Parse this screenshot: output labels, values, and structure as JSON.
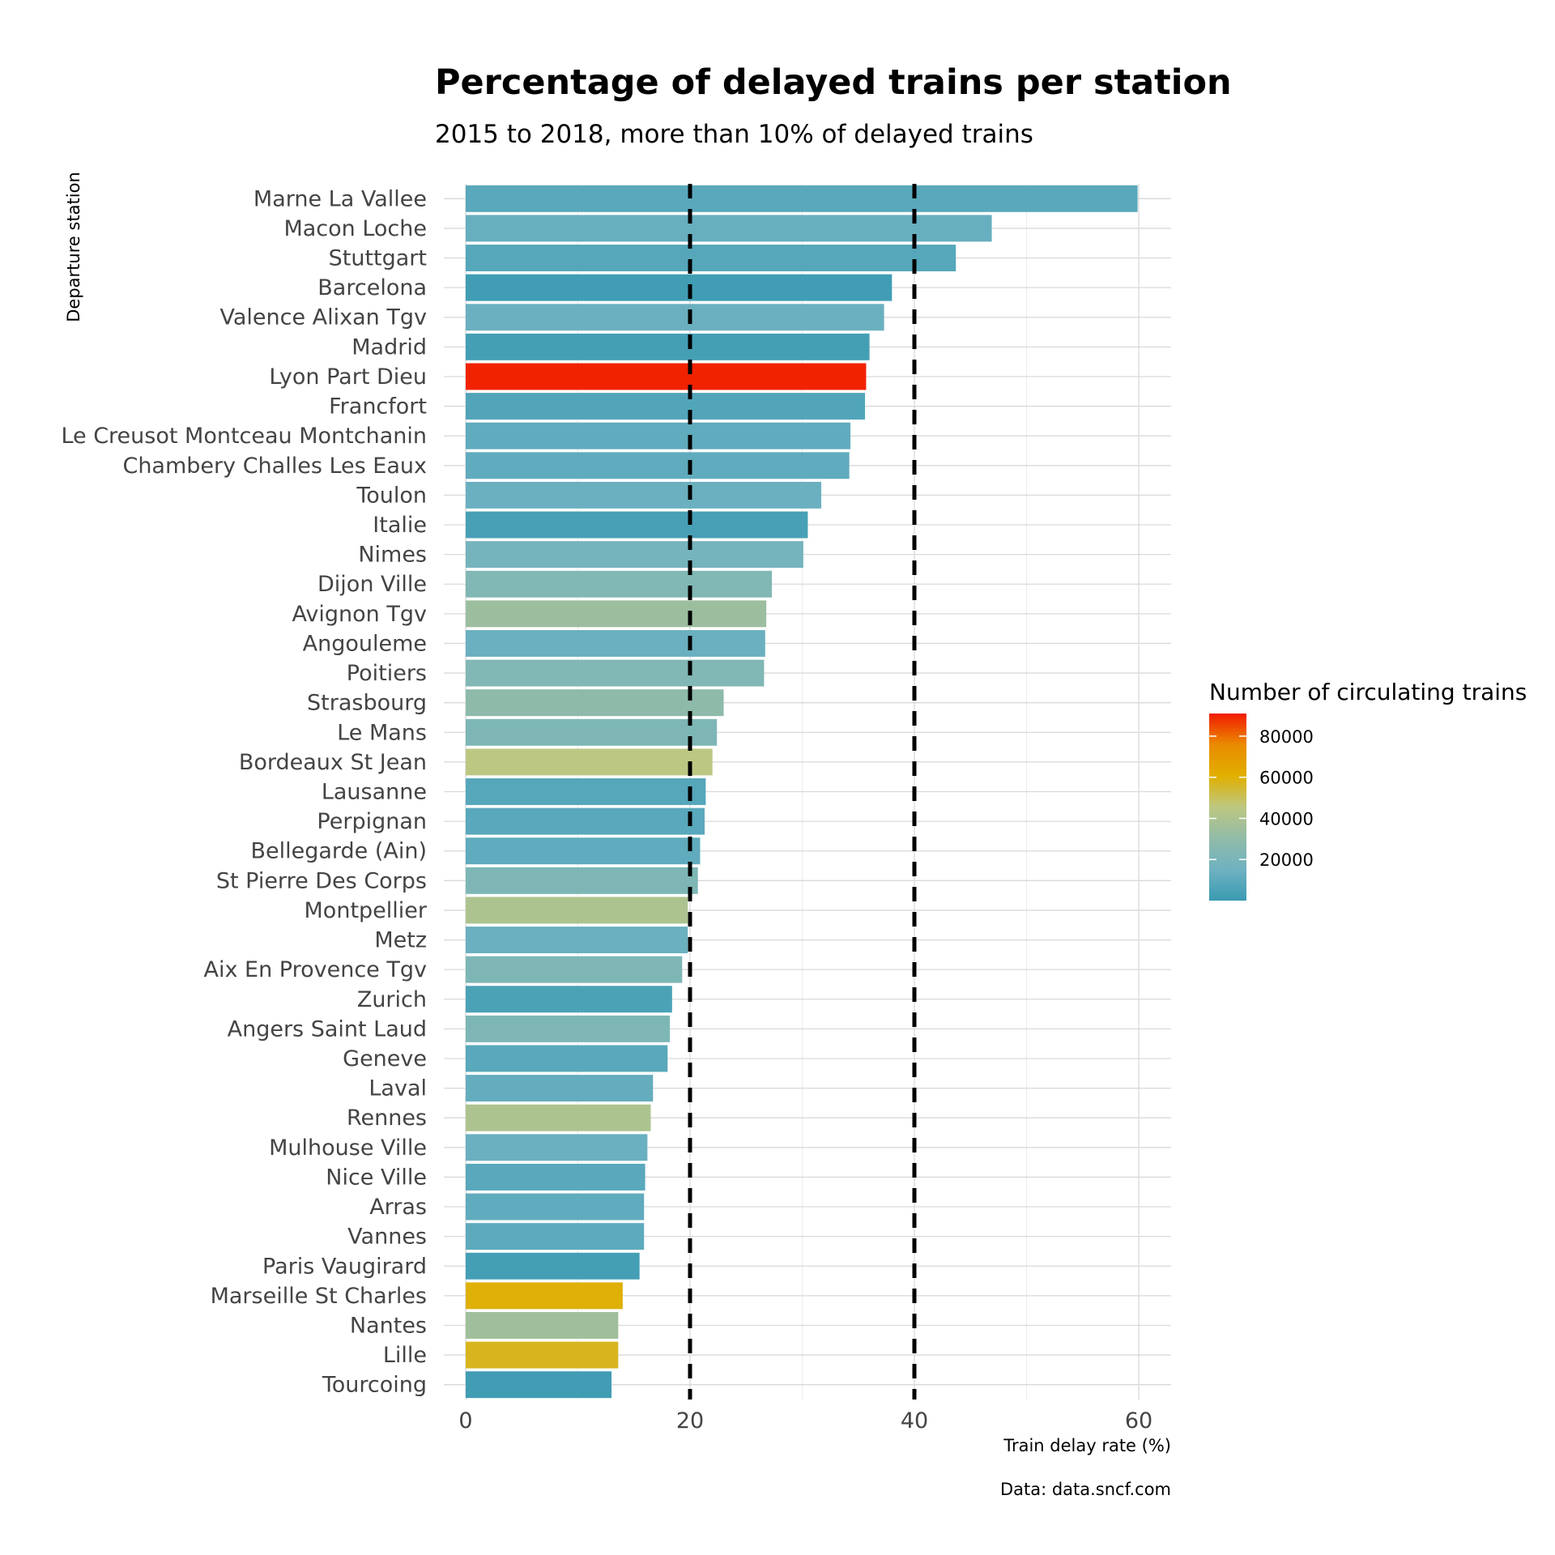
{
  "chart_data": {
    "type": "bar",
    "orientation": "horizontal",
    "title": "Percentage of delayed trains per station",
    "subtitle": "2015 to 2018, more than 10% of delayed trains",
    "xlabel": "Train delay rate (%)",
    "ylabel": "Departure station",
    "caption": "Data: data.sncf.com",
    "xlim": [
      0,
      63
    ],
    "xticks": [
      0,
      20,
      40,
      60
    ],
    "grid": true,
    "reference_lines": [
      20,
      40
    ],
    "categories": [
      "Marne La Vallee",
      "Macon Loche",
      "Stuttgart",
      "Barcelona",
      "Valence Alixan Tgv",
      "Madrid",
      "Lyon Part Dieu",
      "Francfort",
      "Le Creusot Montceau Montchanin",
      "Chambery Challes Les Eaux",
      "Toulon",
      "Italie",
      "Nimes",
      "Dijon Ville",
      "Avignon Tgv",
      "Angouleme",
      "Poitiers",
      "Strasbourg",
      "Le Mans",
      "Bordeaux St Jean",
      "Lausanne",
      "Perpignan",
      "Bellegarde (Ain)",
      "St Pierre Des Corps",
      "Montpellier",
      "Metz",
      "Aix En Provence Tgv",
      "Zurich",
      "Angers Saint Laud",
      "Geneve",
      "Laval",
      "Rennes",
      "Mulhouse Ville",
      "Nice Ville",
      "Arras",
      "Vannes",
      "Paris Vaugirard",
      "Marseille St Charles",
      "Nantes",
      "Lille",
      "Tourcoing"
    ],
    "values": [
      59.9,
      46.9,
      43.7,
      38.0,
      37.3,
      36.0,
      35.7,
      35.6,
      34.3,
      34.2,
      31.7,
      30.5,
      30.1,
      27.3,
      26.8,
      26.7,
      26.6,
      23.0,
      22.4,
      22.0,
      21.4,
      21.3,
      20.9,
      20.7,
      19.8,
      19.8,
      19.3,
      18.4,
      18.2,
      18.0,
      16.7,
      16.5,
      16.2,
      16.0,
      15.9,
      15.9,
      15.5,
      14.0,
      13.6,
      13.6,
      13.0
    ],
    "color_values": [
      9000,
      13000,
      8000,
      2000,
      14000,
      3000,
      90000,
      7000,
      11000,
      11000,
      14000,
      4000,
      18000,
      23000,
      34000,
      14000,
      23000,
      29000,
      22000,
      45000,
      8000,
      9000,
      11000,
      22000,
      40000,
      14000,
      22000,
      5000,
      22000,
      9000,
      12000,
      40000,
      14000,
      9000,
      11000,
      10000,
      3000,
      60000,
      35000,
      57000,
      2000
    ],
    "legend": {
      "title": "Number of circulating trains",
      "ticks": [
        20000,
        40000,
        60000,
        80000
      ],
      "range": [
        0,
        91000
      ],
      "placement": "right",
      "color_stops": [
        "#3a9ab2",
        "#6fb2c1",
        "#91bba8",
        "#bdc881",
        "#e1af00",
        "#ea8b00",
        "#f11b00"
      ]
    }
  }
}
